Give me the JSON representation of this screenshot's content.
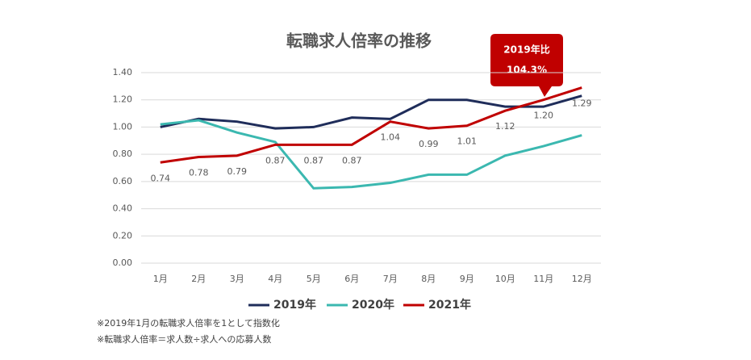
{
  "chart_data": {
    "type": "line",
    "title": "転職求人倍率の推移",
    "categories": [
      "1月",
      "2月",
      "3月",
      "4月",
      "5月",
      "6月",
      "7月",
      "8月",
      "9月",
      "10月",
      "11月",
      "12月"
    ],
    "series": [
      {
        "name": "2019年",
        "color": "#1f2d5a",
        "values": [
          1.0,
          1.06,
          1.04,
          0.99,
          1.0,
          1.07,
          1.06,
          1.2,
          1.2,
          1.15,
          1.15,
          1.23
        ]
      },
      {
        "name": "2020年",
        "color": "#3bb8b0",
        "values": [
          1.02,
          1.05,
          0.96,
          0.89,
          0.55,
          0.56,
          0.59,
          0.65,
          0.65,
          0.79,
          0.86,
          0.94
        ]
      },
      {
        "name": "2021年",
        "color": "#c00000",
        "values": [
          0.74,
          0.78,
          0.79,
          0.87,
          0.87,
          0.87,
          1.04,
          0.99,
          1.01,
          1.12,
          1.2,
          1.29
        ],
        "value_labels": [
          "0.74",
          "0.78",
          "0.79",
          "0.87",
          "0.87",
          "0.87",
          "1.04",
          "0.99",
          "1.01",
          "1.12",
          "1.20",
          "1.29"
        ]
      }
    ],
    "ylim": [
      0,
      1.4
    ],
    "yticks": [
      {
        "value": 0,
        "label": "0.00"
      },
      {
        "value": 0.2,
        "label": "0.20"
      },
      {
        "value": 0.4,
        "label": "0.40"
      },
      {
        "value": 0.6,
        "label": "0.60"
      },
      {
        "value": 0.8,
        "label": "0.80"
      },
      {
        "value": 1,
        "label": "1.00"
      },
      {
        "value": 1.2,
        "label": "1.20"
      },
      {
        "value": 1.4,
        "label": "1.40"
      }
    ],
    "grid": true,
    "annotation": [
      "2019年比",
      "104.3%"
    ],
    "notes": [
      "※2019年1月の転職求人倍率を1として指数化",
      "※転職求人倍率＝求人数÷求人への応募人数"
    ]
  }
}
